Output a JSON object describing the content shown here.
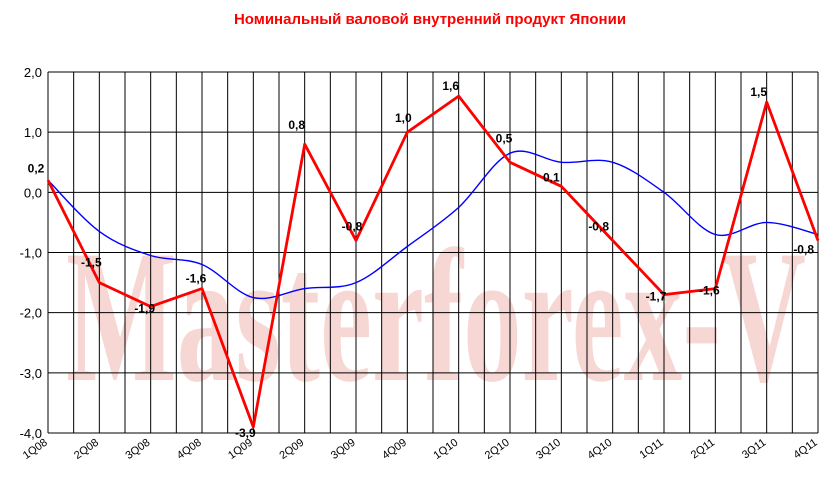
{
  "chart_data": {
    "type": "line",
    "title": "Номинальный валовой внутренний продукт Японии",
    "watermark": "Masterforex-V",
    "categories": [
      "1Q08",
      "2Q08",
      "3Q08",
      "4Q08",
      "1Q09",
      "2Q09",
      "3Q09",
      "4Q09",
      "1Q10",
      "2Q10",
      "3Q10",
      "4Q10",
      "1Q11",
      "2Q11",
      "3Q11",
      "4Q11"
    ],
    "x_tick_labels": [
      "1Q08",
      "2Q08",
      "3Q08",
      "4Q08",
      "1Q09",
      "2Q09",
      "3Q09",
      "4Q09",
      "1Q10",
      "2Q10",
      "3Q10",
      "4Q10",
      "1Q11",
      "2Q11",
      "3Q11",
      "4Q11"
    ],
    "y_tick_labels": [
      "2,0",
      "1,0",
      "0,0",
      "-1,0",
      "-2,0",
      "-3,0",
      "-4,0"
    ],
    "ylim": [
      -4,
      2
    ],
    "grid": true,
    "series": [
      {
        "values": [
          0.2,
          -1.5,
          -1.9,
          -1.6,
          -3.9,
          0.8,
          -0.8,
          1.0,
          1.6,
          0.5,
          0.1,
          -0.8,
          -1.7,
          -1.6,
          1.5,
          -0.8
        ],
        "labels": [
          "0,2",
          "-1,5",
          "-1,9",
          "-1,6",
          "-3,9",
          "0,8",
          "-0,8",
          "1,0",
          "1,6",
          "0,5",
          "0,1",
          "-0,8",
          "-1,7",
          "-1,6",
          "1,5",
          "-0,8"
        ],
        "color": "#ff0000"
      },
      {
        "values": [
          0.2,
          -0.65,
          -1.05,
          -1.2,
          -1.75,
          -1.6,
          -1.5,
          -0.9,
          -0.25,
          0.65,
          0.5,
          0.5,
          0.0,
          -0.7,
          -0.5,
          -0.7
        ],
        "color": "#0000ff"
      }
    ],
    "colors": {
      "accent": "#ff0000",
      "grid": "#000000",
      "trend": "#0000ff"
    }
  }
}
